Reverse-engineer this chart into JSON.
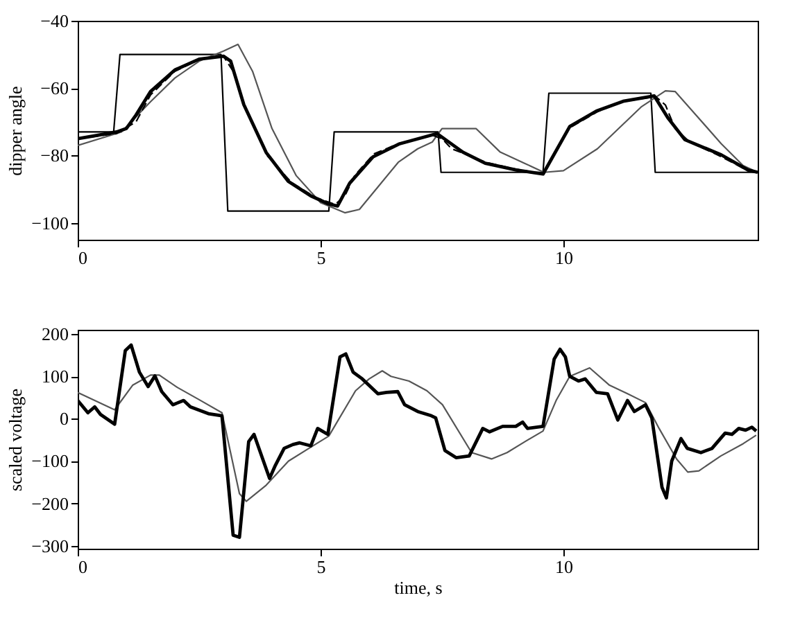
{
  "chart_data": [
    {
      "type": "line",
      "ylabel": "dipper angle",
      "xlim": [
        0,
        14
      ],
      "xticks": [
        0,
        5,
        10
      ],
      "ylim": [
        -105,
        -40
      ],
      "yticks": [
        -40,
        -60,
        -80,
        -100
      ],
      "grid": false,
      "marker": "none",
      "series": [
        {
          "color": "#000000",
          "line_style": "solid",
          "x": [
            0,
            0.74,
            0.87,
            2.95,
            3.09,
            5.17,
            5.28,
            7.42,
            7.48,
            9.58,
            9.7,
            11.8,
            11.89,
            14
          ],
          "values": [
            -73,
            -73,
            -50,
            -50,
            -96.5,
            -96.5,
            -73,
            -73,
            -85,
            -85,
            -61.5,
            -61.5,
            -85,
            -85
          ]
        },
        {
          "color": "#555555",
          "line_style": "solid",
          "x": [
            0,
            0.9,
            1.5,
            2,
            2.5,
            3.0,
            3.3,
            3.6,
            4.0,
            4.5,
            5.0,
            5.5,
            5.8,
            6.2,
            6.6,
            7.0,
            7.3,
            7.5,
            8.2,
            8.7,
            9.2,
            9.6,
            10.0,
            10.7,
            11.6,
            12.1,
            12.3,
            12.7,
            13.25,
            13.7,
            14
          ],
          "values": [
            -77,
            -73,
            -64,
            -57,
            -52,
            -49,
            -47,
            -55,
            -72,
            -86,
            -94,
            -97,
            -96,
            -89,
            -82,
            -78,
            -76,
            -72,
            -72,
            -79,
            -82.3,
            -85,
            -84.5,
            -78,
            -65.6,
            -60.8,
            -61,
            -67.5,
            -76.5,
            -83,
            -85
          ]
        },
        {
          "color": "#000000",
          "line_style": "dashed",
          "x": [
            0,
            0.8,
            1.2,
            1.5,
            2,
            2.5,
            3.0,
            3.2,
            3.45,
            3.9,
            4.4,
            4.9,
            5.3,
            5.5,
            5.7,
            6.1,
            6.6,
            7.3,
            7.5,
            7.7,
            8.4,
            9.0,
            9.6,
            9.8,
            10.1,
            10.7,
            11.2,
            11.9,
            12.1,
            12.3,
            12.6,
            13.2,
            13.8,
            14
          ],
          "values": [
            -75,
            -73.5,
            -70,
            -62,
            -55,
            -51.5,
            -50.5,
            -55,
            -66,
            -80,
            -88,
            -92.5,
            -94.5,
            -92,
            -86,
            -79.5,
            -76.5,
            -74,
            -75,
            -78,
            -82,
            -84,
            -85.5,
            -80,
            -72,
            -67,
            -64,
            -62.5,
            -65,
            -72,
            -76,
            -80,
            -84.5,
            -85
          ]
        },
        {
          "color": "#000000",
          "line_style": "solid",
          "x": [
            0,
            0.4,
            0.8,
            1.0,
            1.2,
            1.5,
            2.0,
            2.5,
            3.0,
            3.15,
            3.42,
            3.88,
            4.33,
            4.8,
            5.17,
            5.35,
            5.6,
            6.08,
            6.63,
            7.27,
            7.4,
            7.93,
            8.39,
            9.03,
            9.58,
            10.13,
            10.68,
            11.23,
            11.87,
            12.15,
            12.5,
            13.25,
            13.8,
            14
          ],
          "values": [
            -75,
            -74,
            -73,
            -72,
            -68,
            -61,
            -54.6,
            -51.4,
            -50.5,
            -52,
            -64.9,
            -79.1,
            -87.6,
            -92,
            -94.4,
            -95,
            -88.2,
            -80.4,
            -76.5,
            -74,
            -73.5,
            -79,
            -82.3,
            -84.3,
            -85.5,
            -71.4,
            -66.8,
            -63.9,
            -62.3,
            -68.8,
            -75.3,
            -79.8,
            -84.3,
            -85
          ]
        }
      ]
    },
    {
      "type": "line",
      "xlabel": "time, s",
      "ylabel": "scaled voltage",
      "xlim": [
        0,
        14
      ],
      "xticks": [
        0,
        5,
        10
      ],
      "ylim": [
        -307,
        210
      ],
      "yticks": [
        200,
        100,
        0,
        -100,
        -200,
        -300
      ],
      "grid": false,
      "marker": "none",
      "series": [
        {
          "color": "#555555",
          "line_style": "solid",
          "x": [
            0,
            0.35,
            0.76,
            1.13,
            1.5,
            1.68,
            2.05,
            2.5,
            2.97,
            3.33,
            3.47,
            3.88,
            4.34,
            4.8,
            5.17,
            5.72,
            6.0,
            6.27,
            6.45,
            6.82,
            7.19,
            7.51,
            8.11,
            8.52,
            8.84,
            9.21,
            9.58,
            9.85,
            10.13,
            10.54,
            10.95,
            11.32,
            11.69,
            11.97,
            12.33,
            12.56,
            12.79,
            13.24,
            13.7,
            13.97
          ],
          "values": [
            62,
            43,
            21,
            79,
            103,
            103,
            74,
            45,
            14,
            -177,
            -195,
            -157,
            -100,
            -67,
            -41,
            66,
            94,
            113,
            100,
            89,
            66,
            33,
            -80,
            -95,
            -80,
            -54,
            -29,
            43,
            100,
            120,
            79,
            59,
            38,
            -23,
            -95,
            -126,
            -123,
            -88,
            -59,
            -39
          ]
        },
        {
          "color": "#000000",
          "line_style": "solid",
          "x": [
            0,
            0.21,
            0.35,
            0.47,
            0.76,
            0.98,
            1.1,
            1.27,
            1.45,
            1.59,
            1.73,
            1.96,
            2.18,
            2.32,
            2.69,
            2.97,
            3.2,
            3.33,
            3.52,
            3.63,
            3.95,
            4.07,
            4.25,
            4.43,
            4.57,
            4.8,
            4.94,
            5.15,
            5.4,
            5.52,
            5.67,
            5.86,
            6.18,
            6.36,
            6.59,
            6.73,
            7.0,
            7.28,
            7.37,
            7.56,
            7.79,
            8.06,
            8.34,
            8.48,
            8.75,
            9.02,
            9.16,
            9.26,
            9.58,
            9.81,
            9.93,
            10.04,
            10.13,
            10.31,
            10.45,
            10.68,
            10.91,
            11.12,
            11.32,
            11.46,
            11.69,
            11.82,
            12.03,
            12.12,
            12.23,
            12.42,
            12.55,
            12.83,
            13.06,
            13.33,
            13.47,
            13.61,
            13.75,
            13.88,
            13.97
          ],
          "values": [
            43,
            14,
            28,
            10,
            -13,
            161,
            174,
            110,
            76,
            101,
            64,
            33,
            43,
            28,
            12,
            7,
            -275,
            -280,
            -54,
            -37,
            -141,
            -110,
            -70,
            -61,
            -57,
            -64,
            -23,
            -37,
            146,
            153,
            110,
            94,
            59,
            62,
            64,
            33,
            17,
            7,
            2,
            -75,
            -92,
            -88,
            -23,
            -31,
            -18,
            -18,
            -8,
            -23,
            -18,
            141,
            164,
            146,
            100,
            89,
            94,
            62,
            59,
            -3,
            43,
            17,
            33,
            2,
            -162,
            -187,
            -100,
            -47,
            -70,
            -80,
            -70,
            -34,
            -37,
            -23,
            -27,
            -20,
            -29
          ]
        }
      ]
    }
  ]
}
